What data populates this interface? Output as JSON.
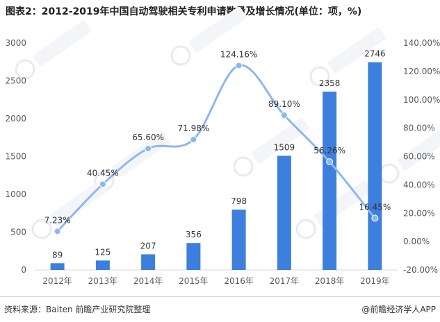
{
  "title": "图表2：2012-2019年中国自动驾驶相关专利申请数量及增长情况(单位：项，%)",
  "footer": {
    "source": "资料来源：Baiten 前瞻产业研究院整理",
    "brand": "@前瞻经济学人APP"
  },
  "chart_data": {
    "type": "bar",
    "categories": [
      "2012年",
      "2013年",
      "2014年",
      "2015年",
      "2016年",
      "2017年",
      "2018年",
      "2019年"
    ],
    "series": [
      {
        "type": "bar",
        "axis": "left",
        "values": [
          89,
          125,
          207,
          356,
          798,
          1509,
          2358,
          2746
        ],
        "color": "#3d7fdc"
      },
      {
        "type": "line",
        "axis": "right",
        "values": [
          7.23,
          40.45,
          65.6,
          71.98,
          124.16,
          89.1,
          56.26,
          16.45
        ],
        "labels": [
          "7.23%",
          "40.45%",
          "65.60%",
          "71.98%",
          "124.16%",
          "89.10%",
          "56.26%",
          "16.45%"
        ],
        "color": "#8db7ef"
      }
    ],
    "left_axis": {
      "ylim": [
        0,
        3000
      ],
      "ticks": [
        0,
        500,
        1000,
        1500,
        2000,
        2500,
        3000
      ],
      "tick_labels": [
        "0",
        "500",
        "1000",
        "1500",
        "2000",
        "2500",
        "3000"
      ]
    },
    "right_axis": {
      "ylim": [
        -20,
        140
      ],
      "ticks": [
        -20,
        0,
        20,
        40,
        60,
        80,
        100,
        120,
        140
      ],
      "tick_labels": [
        "-20.00%",
        "0.00%",
        "20.00%",
        "40.00%",
        "60.00%",
        "80.00%",
        "100.00%",
        "120.00%",
        "140.00%"
      ]
    },
    "grid": false,
    "legend": "none"
  }
}
